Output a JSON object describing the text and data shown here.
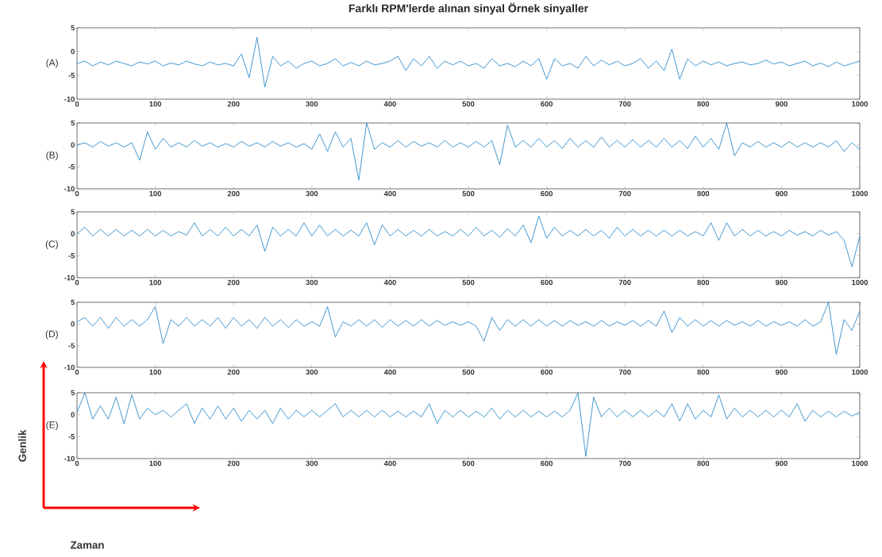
{
  "chart_data": [
    {
      "type": "line",
      "title": "Farklı RPM'lerde alınan sinyal Örnek sinyaller",
      "ylabel": "(A)",
      "color": "#0072bd",
      "xlim": [
        0,
        1000
      ],
      "ylim": [
        -10,
        5
      ],
      "xticks": [
        0,
        100,
        200,
        300,
        400,
        500,
        600,
        700,
        800,
        900,
        1000
      ],
      "yticks": [
        -10,
        -5,
        0,
        5
      ],
      "x": [
        0,
        10,
        20,
        30,
        40,
        50,
        60,
        70,
        80,
        90,
        100,
        110,
        120,
        130,
        140,
        150,
        160,
        170,
        180,
        190,
        200,
        210,
        220,
        230,
        240,
        250,
        260,
        270,
        280,
        290,
        300,
        310,
        320,
        330,
        340,
        350,
        360,
        370,
        380,
        390,
        400,
        410,
        420,
        430,
        440,
        450,
        460,
        470,
        480,
        490,
        500,
        510,
        520,
        530,
        540,
        550,
        560,
        570,
        580,
        590,
        600,
        610,
        620,
        630,
        640,
        650,
        660,
        670,
        680,
        690,
        700,
        710,
        720,
        730,
        740,
        750,
        760,
        770,
        780,
        790,
        800,
        810,
        820,
        830,
        840,
        850,
        860,
        870,
        880,
        890,
        900,
        910,
        920,
        930,
        940,
        950,
        960,
        970,
        980,
        990,
        1000
      ],
      "values": [
        -2.5,
        -2,
        -3,
        -2.2,
        -2.8,
        -2,
        -2.5,
        -3,
        -2.2,
        -2.6,
        -2,
        -3,
        -2.4,
        -2.8,
        -2,
        -2.6,
        -3,
        -2.2,
        -2.8,
        -2.5,
        -3,
        -0.5,
        -5.5,
        3,
        -7.5,
        -1,
        -3,
        -2,
        -3.5,
        -2.5,
        -2,
        -3,
        -2.5,
        -1.5,
        -3,
        -2.3,
        -3,
        -2,
        -2.8,
        -2.5,
        -2,
        -1,
        -4,
        -1.5,
        -3,
        -1,
        -3.5,
        -2,
        -2.8,
        -2,
        -3,
        -2.5,
        -3.5,
        -1.5,
        -3,
        -2.5,
        -3.2,
        -2,
        -3,
        -1.5,
        -5.8,
        -1.5,
        -3,
        -2.5,
        -3.5,
        -1,
        -3,
        -1.8,
        -2.8,
        -2,
        -3,
        -2.5,
        -1.5,
        -3.5,
        -2,
        -4,
        0.5,
        -5.8,
        -1.5,
        -3,
        -2,
        -2.8,
        -2.2,
        -3,
        -2.5,
        -2.2,
        -2.8,
        -2.5,
        -1.8,
        -2.6,
        -2.2,
        -3,
        -2.5,
        -2,
        -3,
        -2.4,
        -3.2,
        -2.2,
        -3,
        -2.5,
        -2
      ]
    },
    {
      "type": "line",
      "ylabel": "(B)",
      "color": "#0072bd",
      "xlim": [
        0,
        1000
      ],
      "ylim": [
        -10,
        5
      ],
      "xticks": [
        0,
        100,
        200,
        300,
        400,
        500,
        600,
        700,
        800,
        900,
        1000
      ],
      "yticks": [
        -10,
        -5,
        0,
        5
      ],
      "x": [
        0,
        10,
        20,
        30,
        40,
        50,
        60,
        70,
        80,
        90,
        100,
        110,
        120,
        130,
        140,
        150,
        160,
        170,
        180,
        190,
        200,
        210,
        220,
        230,
        240,
        250,
        260,
        270,
        280,
        290,
        300,
        310,
        320,
        330,
        340,
        350,
        360,
        370,
        380,
        390,
        400,
        410,
        420,
        430,
        440,
        450,
        460,
        470,
        480,
        490,
        500,
        510,
        520,
        530,
        540,
        550,
        560,
        570,
        580,
        590,
        600,
        610,
        620,
        630,
        640,
        650,
        660,
        670,
        680,
        690,
        700,
        710,
        720,
        730,
        740,
        750,
        760,
        770,
        780,
        790,
        800,
        810,
        820,
        830,
        840,
        850,
        860,
        870,
        880,
        890,
        900,
        910,
        920,
        930,
        940,
        950,
        960,
        970,
        980,
        990,
        1000
      ],
      "values": [
        0,
        0.5,
        -0.5,
        0.8,
        -0.3,
        0.5,
        -0.5,
        0.5,
        -3.5,
        3,
        -1,
        1.5,
        -0.5,
        0.5,
        -0.5,
        1,
        -0.3,
        0.5,
        -0.5,
        0.3,
        -0.5,
        0.8,
        -0.3,
        0.5,
        -0.5,
        0.8,
        -0.3,
        0.5,
        -0.5,
        0.3,
        -1,
        2.5,
        -1.5,
        3,
        -0.5,
        1.5,
        -8,
        5,
        -1,
        0.5,
        -0.5,
        1,
        -0.5,
        0.8,
        -0.3,
        0.5,
        -0.5,
        1,
        -0.5,
        0.5,
        -0.5,
        0.8,
        -0.5,
        1,
        -4.5,
        4.5,
        -0.5,
        1,
        -0.5,
        1.5,
        -0.5,
        1,
        -0.8,
        1.5,
        -0.5,
        1,
        -0.5,
        1.8,
        -0.5,
        1,
        -0.5,
        1.2,
        -0.5,
        1,
        -0.5,
        1.5,
        -0.5,
        1,
        -0.8,
        2,
        -0.5,
        1.5,
        -1,
        5,
        -2.5,
        0.5,
        -0.5,
        0.8,
        -0.5,
        0.5,
        -0.5,
        0.8,
        -0.5,
        0.5,
        -0.5,
        0.5,
        -0.5,
        1,
        -1.5,
        0.5,
        -1
      ]
    },
    {
      "type": "line",
      "ylabel": "(C)",
      "color": "#0072bd",
      "xlim": [
        0,
        1000
      ],
      "ylim": [
        -10,
        5
      ],
      "xticks": [
        0,
        100,
        200,
        300,
        400,
        500,
        600,
        700,
        800,
        900,
        1000
      ],
      "yticks": [
        -10,
        -5,
        0,
        5
      ],
      "x": [
        0,
        10,
        20,
        30,
        40,
        50,
        60,
        70,
        80,
        90,
        100,
        110,
        120,
        130,
        140,
        150,
        160,
        170,
        180,
        190,
        200,
        210,
        220,
        230,
        240,
        250,
        260,
        270,
        280,
        290,
        300,
        310,
        320,
        330,
        340,
        350,
        360,
        370,
        380,
        390,
        400,
        410,
        420,
        430,
        440,
        450,
        460,
        470,
        480,
        490,
        500,
        510,
        520,
        530,
        540,
        550,
        560,
        570,
        580,
        590,
        600,
        610,
        620,
        630,
        640,
        650,
        660,
        670,
        680,
        690,
        700,
        710,
        720,
        730,
        740,
        750,
        760,
        770,
        780,
        790,
        800,
        810,
        820,
        830,
        840,
        850,
        860,
        870,
        880,
        890,
        900,
        910,
        920,
        930,
        940,
        950,
        960,
        970,
        980,
        990,
        1000
      ],
      "values": [
        0,
        1.5,
        -0.5,
        1,
        -0.5,
        1,
        -0.5,
        0.8,
        -0.5,
        1,
        -0.5,
        0.8,
        -0.5,
        0.5,
        -0.3,
        2.5,
        -0.5,
        1,
        -0.5,
        1.5,
        -0.5,
        1,
        -0.5,
        2,
        -4,
        1.5,
        -0.5,
        1,
        -0.5,
        2.5,
        -0.5,
        2,
        -0.5,
        1,
        -0.5,
        0.8,
        -0.5,
        2.5,
        -2.5,
        2,
        -0.5,
        1,
        -0.5,
        0.8,
        -0.5,
        1,
        -0.5,
        0.5,
        -0.5,
        1,
        -0.5,
        1.5,
        -0.5,
        0.8,
        -0.8,
        1.2,
        -0.5,
        2,
        -2,
        4,
        -1,
        1.5,
        -0.5,
        0.8,
        -0.5,
        1,
        -0.5,
        0.8,
        -1,
        1.5,
        -0.5,
        1,
        -0.5,
        0.8,
        -0.5,
        0.8,
        -0.5,
        0.8,
        -0.5,
        0.5,
        -0.5,
        2.5,
        -1.5,
        2.5,
        -0.5,
        1,
        -0.5,
        0.8,
        -0.5,
        0.5,
        -0.5,
        0.8,
        -0.3,
        0.5,
        -0.5,
        0.8,
        -0.3,
        0.5,
        -1.5,
        -7.5,
        -0.5
      ]
    },
    {
      "type": "line",
      "ylabel": "(D)",
      "color": "#0072bd",
      "xlim": [
        0,
        1000
      ],
      "ylim": [
        -10,
        5
      ],
      "xticks": [
        0,
        100,
        200,
        300,
        400,
        500,
        600,
        700,
        800,
        900,
        1000
      ],
      "yticks": [
        -10,
        -5,
        0,
        5
      ],
      "x": [
        0,
        10,
        20,
        30,
        40,
        50,
        60,
        70,
        80,
        90,
        100,
        110,
        120,
        130,
        140,
        150,
        160,
        170,
        180,
        190,
        200,
        210,
        220,
        230,
        240,
        250,
        260,
        270,
        280,
        290,
        300,
        310,
        320,
        330,
        340,
        350,
        360,
        370,
        380,
        390,
        400,
        410,
        420,
        430,
        440,
        450,
        460,
        470,
        480,
        490,
        500,
        510,
        520,
        530,
        540,
        550,
        560,
        570,
        580,
        590,
        600,
        610,
        620,
        630,
        640,
        650,
        660,
        670,
        680,
        690,
        700,
        710,
        720,
        730,
        740,
        750,
        760,
        770,
        780,
        790,
        800,
        810,
        820,
        830,
        840,
        850,
        860,
        870,
        880,
        890,
        900,
        910,
        920,
        930,
        940,
        950,
        960,
        970,
        980,
        990,
        1000
      ],
      "values": [
        0.5,
        1.5,
        -0.5,
        1.5,
        -1,
        1.5,
        -0.5,
        1,
        -0.5,
        1,
        4,
        -4.5,
        1,
        -0.5,
        1.5,
        -0.5,
        1,
        -0.5,
        1.5,
        -1,
        1.5,
        -0.5,
        1,
        -1,
        1.5,
        -0.5,
        1,
        -0.8,
        1,
        -0.5,
        0.5,
        -0.5,
        4,
        -3,
        0.5,
        -0.5,
        1,
        -0.5,
        1,
        -0.8,
        1,
        -0.5,
        0.8,
        -0.5,
        1,
        -0.5,
        0.8,
        -0.3,
        0.5,
        -0.3,
        0.5,
        -0.5,
        -4,
        1.5,
        -1.5,
        1,
        -0.5,
        1,
        -0.5,
        1,
        -0.5,
        0.8,
        -0.5,
        0.8,
        -0.3,
        0.5,
        -0.5,
        0.8,
        -0.5,
        0.5,
        -0.3,
        0.8,
        -0.5,
        0.8,
        -0.5,
        3,
        -2,
        1.5,
        -0.5,
        1,
        -0.5,
        0.8,
        -0.5,
        0.8,
        -0.3,
        0.5,
        -0.5,
        0.8,
        -0.5,
        0.5,
        -0.3,
        0.5,
        -0.5,
        1,
        -0.5,
        0.5,
        5,
        -7,
        1,
        -1.5,
        3
      ]
    },
    {
      "type": "line",
      "ylabel": "(E)",
      "color": "#0072bd",
      "xlim": [
        0,
        1000
      ],
      "ylim": [
        -10,
        5
      ],
      "xticks": [
        0,
        100,
        200,
        300,
        400,
        500,
        600,
        700,
        800,
        900,
        1000
      ],
      "yticks": [
        -10,
        -5,
        0,
        5
      ],
      "annotations": [
        "Genlik",
        "Zaman"
      ],
      "x": [
        0,
        10,
        20,
        30,
        40,
        50,
        60,
        70,
        80,
        90,
        100,
        110,
        120,
        130,
        140,
        150,
        160,
        170,
        180,
        190,
        200,
        210,
        220,
        230,
        240,
        250,
        260,
        270,
        280,
        290,
        300,
        310,
        320,
        330,
        340,
        350,
        360,
        370,
        380,
        390,
        400,
        410,
        420,
        430,
        440,
        450,
        460,
        470,
        480,
        490,
        500,
        510,
        520,
        530,
        540,
        550,
        560,
        570,
        580,
        590,
        600,
        610,
        620,
        630,
        640,
        650,
        660,
        670,
        680,
        690,
        700,
        710,
        720,
        730,
        740,
        750,
        760,
        770,
        780,
        790,
        800,
        810,
        820,
        830,
        840,
        850,
        860,
        870,
        880,
        890,
        900,
        910,
        920,
        930,
        940,
        950,
        960,
        970,
        980,
        990,
        1000
      ],
      "values": [
        0.5,
        5,
        -1,
        2,
        -1,
        4,
        -2,
        4.5,
        -1,
        1.5,
        0,
        1,
        -0.5,
        1,
        2.5,
        -2,
        1.5,
        -1,
        2,
        -1,
        1.5,
        -1.5,
        1,
        -1,
        1,
        -2,
        1.5,
        -1,
        1,
        -0.5,
        1,
        -0.5,
        1,
        2.5,
        -0.5,
        1,
        -0.5,
        1,
        -0.5,
        1,
        -0.5,
        0.8,
        -0.5,
        0.8,
        -0.5,
        2.5,
        -2,
        1,
        -0.5,
        1,
        -0.5,
        0.8,
        -0.5,
        1.5,
        -1,
        1,
        -0.5,
        1,
        -0.5,
        0.8,
        -0.5,
        0.8,
        -0.5,
        1,
        5,
        -9.5,
        4,
        -0.5,
        1.5,
        -0.5,
        1,
        -0.5,
        1,
        -0.5,
        1,
        -0.5,
        2.5,
        -1.5,
        2.5,
        -1,
        1,
        -0.5,
        4.5,
        -1,
        1.5,
        -0.5,
        1,
        -0.5,
        1,
        -0.5,
        1,
        -0.5,
        2.5,
        -1.5,
        1,
        -0.5,
        0.8,
        -0.5,
        0.8,
        -0.3,
        0.5
      ]
    }
  ]
}
